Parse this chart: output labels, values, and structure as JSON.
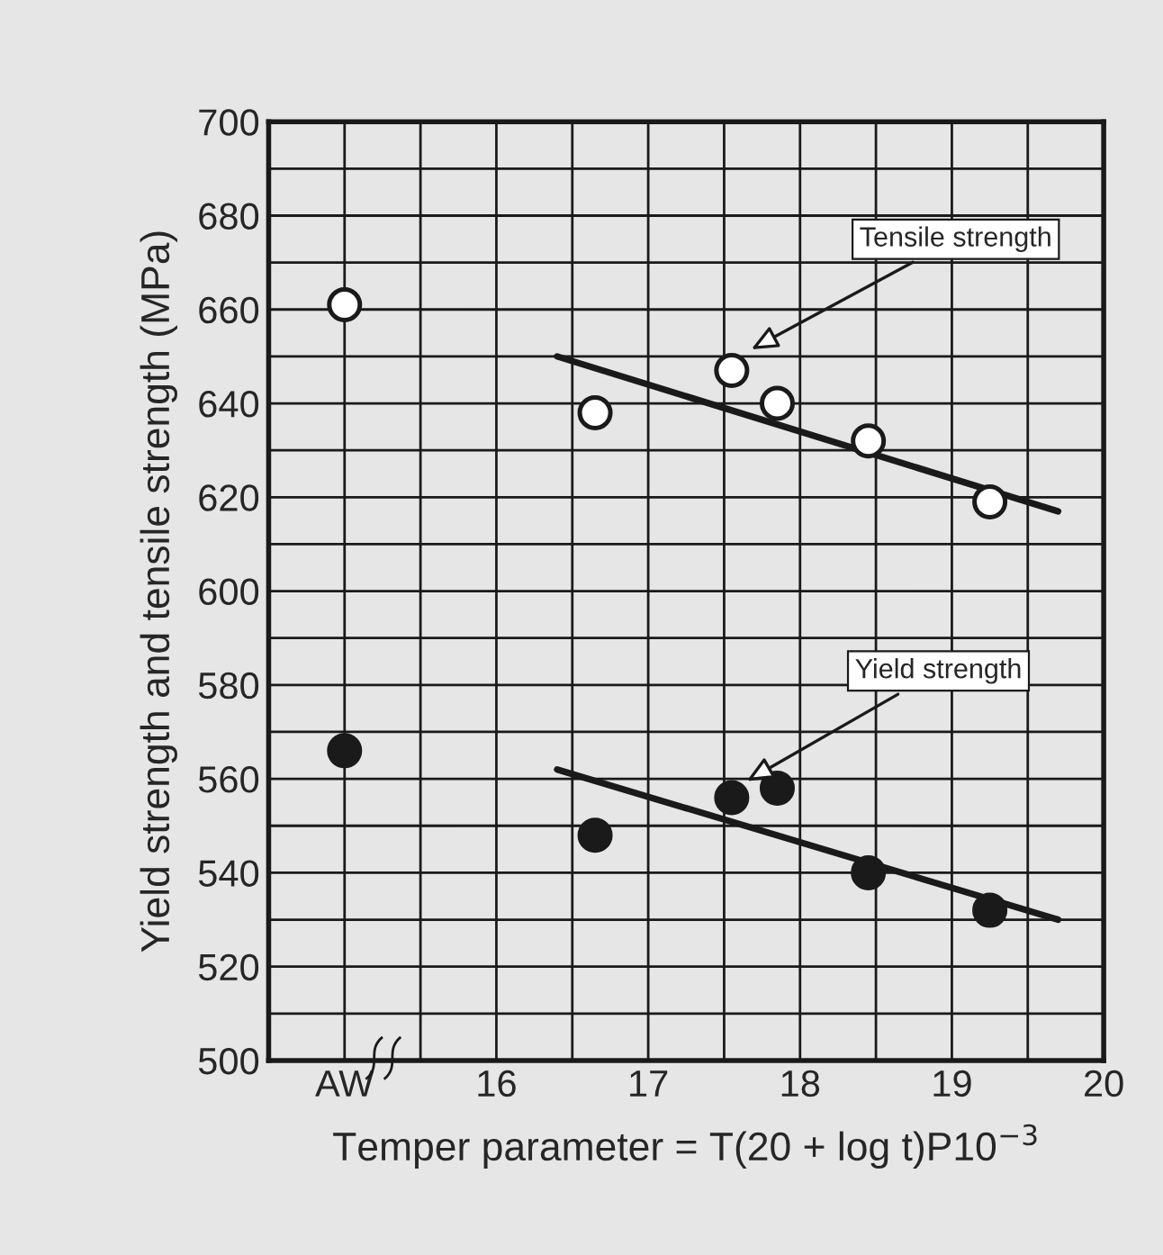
{
  "chart_data": {
    "type": "scatter",
    "xlabel": "Temper parameter = T(20 + log t)P10$^{−3}$",
    "ylabel": "Yield strength and tensile strength (MPa)",
    "xlim": [
      14.5,
      20
    ],
    "ylim": [
      500,
      700
    ],
    "xticks": [
      {
        "value": 15,
        "label": "AW"
      },
      {
        "value": 15.5,
        "label": null
      },
      16,
      {
        "value": 16.5,
        "label": null
      },
      17,
      {
        "value": 17.5,
        "label": null
      },
      18,
      {
        "value": 18.5,
        "label": null
      },
      19,
      {
        "value": 19.5,
        "label": null
      },
      20
    ],
    "yticks": [
      500,
      {
        "value": 510,
        "label": null
      },
      520,
      {
        "value": 530,
        "label": null
      },
      540,
      {
        "value": 550,
        "label": null
      },
      560,
      {
        "value": 570,
        "label": null
      },
      580,
      {
        "value": 590,
        "label": null
      },
      600,
      {
        "value": 610,
        "label": null
      },
      620,
      {
        "value": 630,
        "label": null
      },
      640,
      {
        "value": 650,
        "label": null
      },
      660,
      {
        "value": 670,
        "label": null
      },
      680,
      {
        "value": 690,
        "label": null
      },
      700
    ],
    "grid": true,
    "marker": "circle",
    "series": [
      {
        "color": "#ffffff",
        "x": [
          15,
          16.65,
          17.55,
          17.85,
          18.45,
          19.25
        ],
        "values": [
          661,
          638,
          647,
          640,
          632,
          619
        ]
      },
      {
        "type": "line",
        "color": "#1a1a1a",
        "marker": "none",
        "x": [
          16.4,
          19.7
        ],
        "values": [
          650,
          617
        ]
      },
      {
        "color": "#1a1a1a",
        "x": [
          15,
          16.65,
          17.55,
          17.85,
          18.45,
          19.25
        ],
        "values": [
          566,
          548,
          556,
          558,
          540,
          532
        ]
      },
      {
        "type": "line",
        "color": "#1a1a1a",
        "marker": "none",
        "x": [
          16.4,
          19.7
        ],
        "values": [
          562,
          530
        ]
      }
    ],
    "annotations": [
      {
        "text": "Tensile strength",
        "x": 17.65,
        "y": 651
      },
      {
        "text": "Yield strength",
        "x": 17.62,
        "y": 559
      }
    ]
  }
}
